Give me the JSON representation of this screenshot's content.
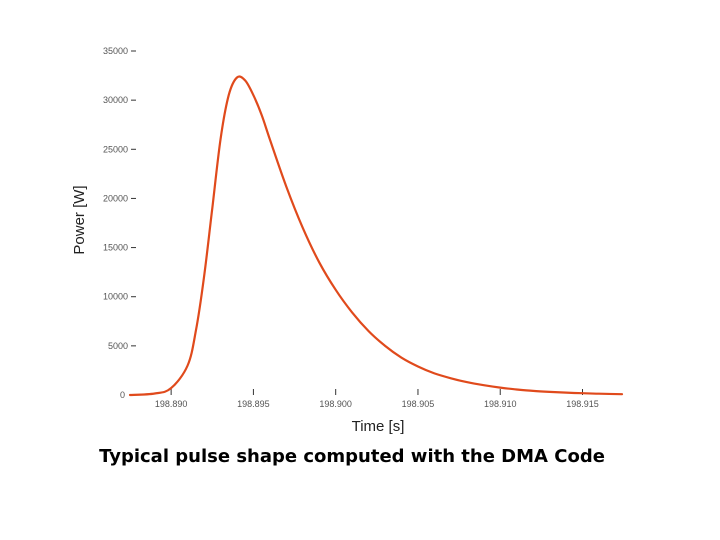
{
  "caption": "Typical pulse shape computed with the DMA Code",
  "colors": {
    "curve": "#e04a1c",
    "axis": "#333333",
    "text": "#555555"
  },
  "chart_data": {
    "type": "line",
    "title": "",
    "xlabel": "Time [s]",
    "ylabel": "Power [W]",
    "xlim": [
      198.8875,
      198.9174
    ],
    "ylim": [
      0,
      35000
    ],
    "x_ticks": [
      198.89,
      198.895,
      198.9,
      198.905,
      198.91,
      198.915
    ],
    "x_tick_labels": [
      "198.890",
      "198.895",
      "198.900",
      "198.905",
      "198.910",
      "198.915"
    ],
    "y_ticks": [
      0,
      5000,
      10000,
      15000,
      20000,
      25000,
      30000,
      35000
    ],
    "y_tick_labels": [
      "0",
      "5000",
      "10000",
      "15000",
      "20000",
      "25000",
      "30000",
      "35000"
    ],
    "grid": false,
    "legend": "none",
    "series": [
      {
        "x": [
          198.8875,
          198.889,
          198.89,
          198.891,
          198.8915,
          198.892,
          198.8925,
          198.893,
          198.8935,
          198.894,
          198.8945,
          198.895,
          198.8955,
          198.896,
          198.897,
          198.898,
          198.899,
          198.9,
          198.901,
          198.902,
          198.903,
          198.904,
          198.905,
          198.906,
          198.907,
          198.908,
          198.909,
          198.91,
          198.911,
          198.912,
          198.913,
          198.914,
          198.915,
          198.916,
          198.9174
        ],
        "y": [
          0,
          150,
          700,
          3000,
          6500,
          12000,
          19000,
          26000,
          30500,
          32300,
          32000,
          30500,
          28500,
          26000,
          21200,
          17000,
          13500,
          10700,
          8400,
          6500,
          5000,
          3800,
          2900,
          2200,
          1700,
          1300,
          1000,
          750,
          560,
          420,
          320,
          240,
          180,
          130,
          80
        ]
      }
    ]
  }
}
